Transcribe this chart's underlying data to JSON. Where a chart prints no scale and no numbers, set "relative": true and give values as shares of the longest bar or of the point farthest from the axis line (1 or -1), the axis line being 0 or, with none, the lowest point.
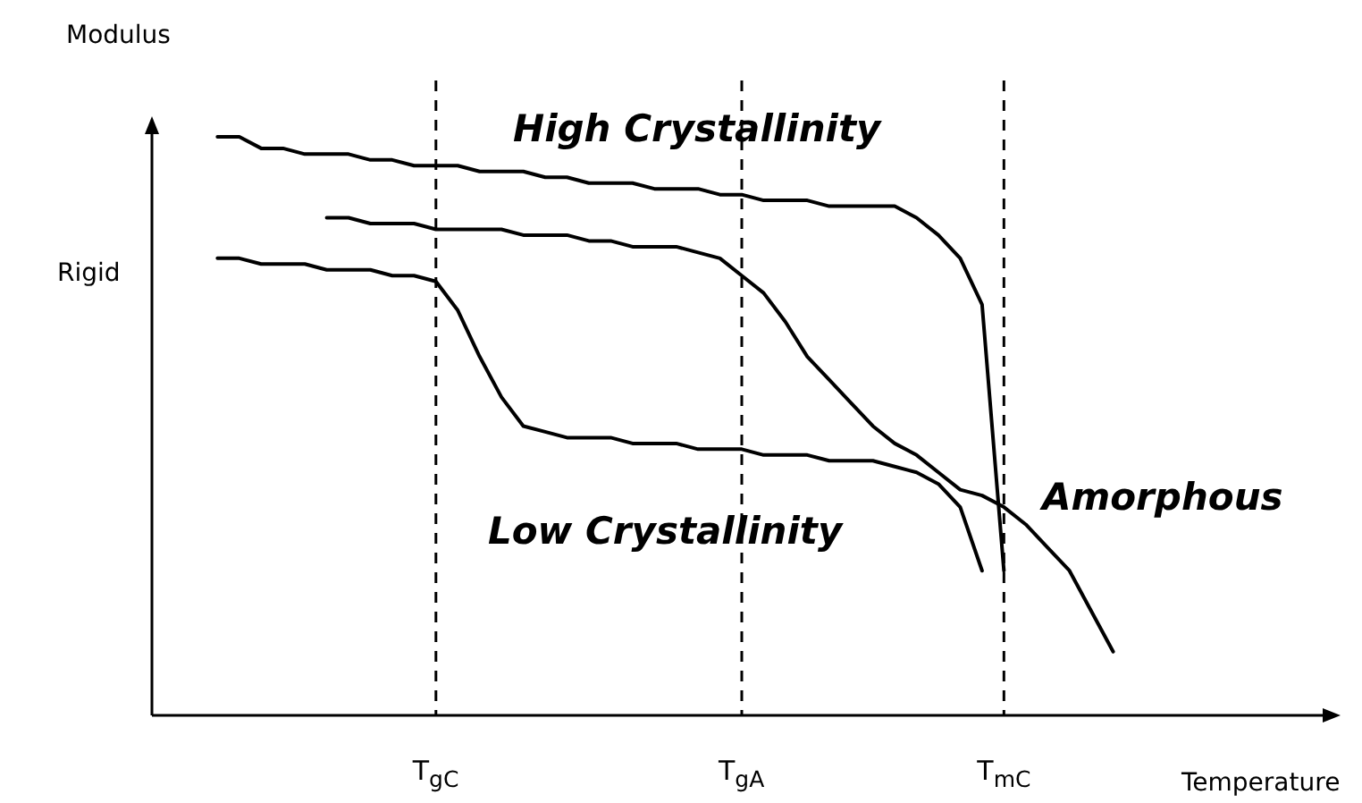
{
  "chart_data": {
    "type": "line",
    "relative": true,
    "xlabel": "Temperature",
    "ylabel": "Modulus",
    "categories": [
      null,
      null,
      null,
      null,
      null,
      null,
      null,
      null,
      null,
      null,
      null,
      null,
      null,
      "T$_{gC}$",
      null,
      null,
      null,
      null,
      null,
      null,
      null,
      null,
      null,
      null,
      null,
      null,
      null,
      "T$_{gA}$",
      null,
      null,
      null,
      null,
      null,
      null,
      null,
      null,
      null,
      null,
      null,
      "T$_{mC}$",
      null,
      null,
      null,
      null,
      null,
      null,
      null,
      null,
      null,
      null,
      null,
      null,
      null,
      null,
      null
    ],
    "tick_labels": "x",
    "grid": false,
    "legend": false,
    "marker": "none",
    "line_style": "solid",
    "series": [
      {
        "name": "High Crystallinity",
        "color": "#000000",
        "values": [
          null,
          null,
          null,
          1.0,
          1.0,
          0.98,
          0.98,
          0.97,
          0.97,
          0.97,
          0.96,
          0.96,
          0.95,
          0.95,
          0.95,
          0.94,
          0.94,
          0.94,
          0.93,
          0.93,
          0.92,
          0.92,
          0.92,
          0.91,
          0.91,
          0.91,
          0.9,
          0.9,
          0.89,
          0.89,
          0.89,
          0.88,
          0.88,
          0.88,
          0.88,
          0.86,
          0.83,
          0.79,
          0.71,
          0.25,
          null,
          null,
          null,
          null,
          null,
          null,
          null,
          null,
          null,
          null,
          null,
          null,
          null,
          null,
          null
        ]
      },
      {
        "name": "Amorphous",
        "color": "#000000",
        "values": [
          null,
          null,
          null,
          null,
          null,
          null,
          null,
          null,
          0.86,
          0.86,
          0.85,
          0.85,
          0.85,
          0.84,
          0.84,
          0.84,
          0.84,
          0.83,
          0.83,
          0.83,
          0.82,
          0.82,
          0.81,
          0.81,
          0.81,
          0.8,
          0.79,
          0.76,
          0.73,
          0.68,
          0.62,
          0.58,
          0.54,
          0.5,
          0.47,
          0.45,
          0.42,
          0.39,
          0.38,
          0.36,
          0.33,
          0.29,
          0.25,
          0.18,
          0.11,
          null,
          null,
          null,
          null,
          null,
          null,
          null,
          null,
          null,
          null
        ]
      },
      {
        "name": "Low Crystallinity",
        "color": "#000000",
        "values": [
          null,
          null,
          null,
          0.79,
          0.79,
          0.78,
          0.78,
          0.78,
          0.77,
          0.77,
          0.77,
          0.76,
          0.76,
          0.75,
          0.7,
          0.62,
          0.55,
          0.5,
          0.49,
          0.48,
          0.48,
          0.48,
          0.47,
          0.47,
          0.47,
          0.46,
          0.46,
          0.46,
          0.45,
          0.45,
          0.45,
          0.44,
          0.44,
          0.44,
          0.43,
          0.42,
          0.4,
          0.36,
          0.25,
          null,
          null,
          null,
          null,
          null,
          null,
          null,
          null,
          null,
          null,
          null,
          null,
          null,
          null,
          null,
          null
        ]
      }
    ],
    "ref_lines": [
      {
        "axis": "x",
        "value": "T$_{gC}$",
        "line_style": "dashed",
        "color": "#000000"
      },
      {
        "axis": "x",
        "value": "T$_{gA}$",
        "line_style": "dashed",
        "color": "#000000"
      },
      {
        "axis": "x",
        "value": "T$_{mC}$",
        "line_style": "dashed",
        "color": "#000000"
      }
    ],
    "annotations": [
      "Rigid"
    ]
  }
}
